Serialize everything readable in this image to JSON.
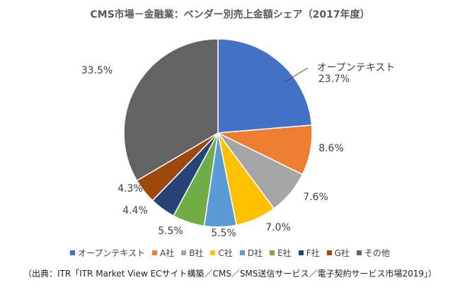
{
  "chart_data": {
    "type": "pie",
    "title": "CMS市場－金融業：ベンダー別売上金額シェア（2017年度）",
    "categories": [
      "オープンテキスト",
      "A社",
      "B社",
      "C社",
      "D社",
      "E社",
      "F社",
      "G社",
      "その他"
    ],
    "values": [
      23.7,
      8.6,
      7.6,
      7.0,
      5.5,
      5.5,
      4.4,
      4.3,
      33.5
    ],
    "labels": [
      "23.7%",
      "8.6%",
      "7.6%",
      "7.0%",
      "5.5%",
      "5.5%",
      "4.4%",
      "4.3%",
      "33.5%"
    ],
    "colors": [
      "#4472C4",
      "#ED7D31",
      "#A5A5A5",
      "#FFC000",
      "#5B9BD5",
      "#70AD47",
      "#264478",
      "#9E480E",
      "#636363"
    ],
    "annotation": "オープンテキスト",
    "legend_position": "bottom"
  },
  "source": "（出典：ITR「ITR Market View ECサイト構築／CMS／SMS送信サービス／電子契約サービス市場2019」）"
}
